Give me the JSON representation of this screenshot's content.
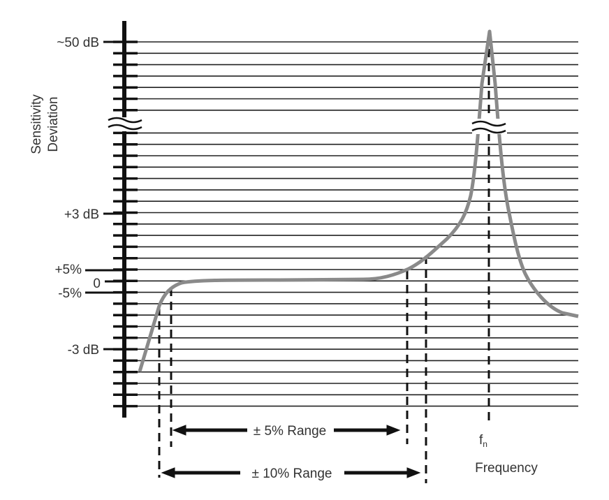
{
  "axis": {
    "y_title_line1": "Sensitivity",
    "y_title_line2": "Deviation",
    "x_title": "Frequency",
    "labels": {
      "minus50db": "~50 dB",
      "plus3db": "+3 dB",
      "plus5pct": "+5%",
      "zero": "0",
      "minus5pct": "-5%",
      "minus3db": "-3 dB"
    }
  },
  "annotations": {
    "fn_base": "f",
    "fn_sub": "n",
    "range5": "± 5% Range",
    "range10": "± 10% Range"
  },
  "colors": {
    "curve": "#8a8a8a",
    "axis": "#111111",
    "grid": "#222222"
  }
}
